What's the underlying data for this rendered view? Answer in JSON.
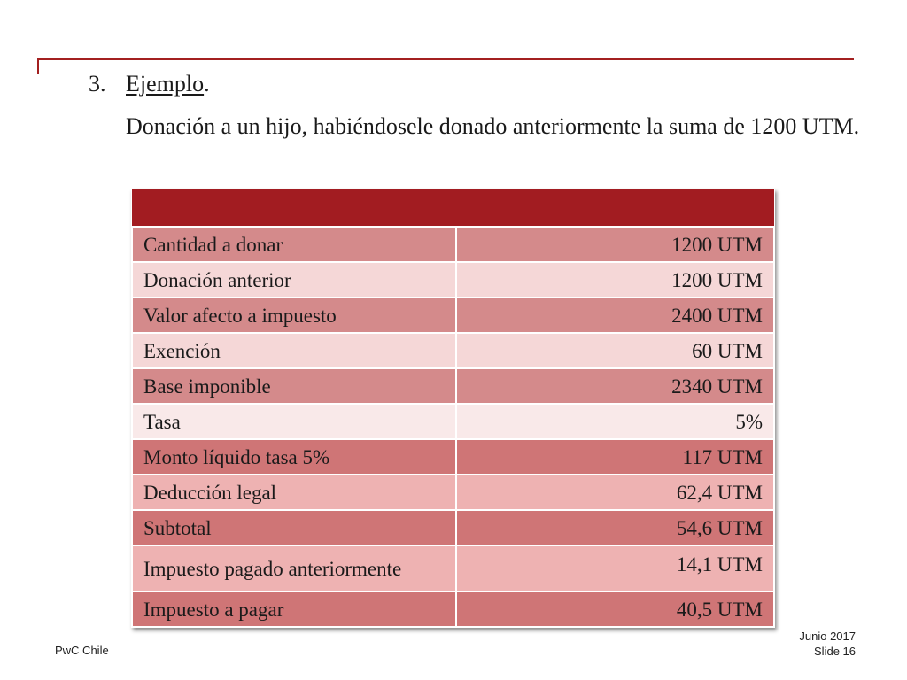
{
  "slide": {
    "number_prefix": "3.",
    "title": "Ejemplo",
    "title_suffix": ".",
    "subtitle": "Donación a un hijo, habiéndosele donado anteriormente la suma de 1200 UTM."
  },
  "table": {
    "rows": [
      {
        "label": "Cantidad a donar",
        "value": "1200 UTM"
      },
      {
        "label": "Donación anterior",
        "value": "1200 UTM"
      },
      {
        "label": "Valor afecto a impuesto",
        "value": "2400 UTM"
      },
      {
        "label": "Exención",
        "value": "60 UTM"
      },
      {
        "label": "Base imponible",
        "value": "2340 UTM"
      },
      {
        "label": "Tasa",
        "value": "5%"
      },
      {
        "label": "Monto líquido tasa 5%",
        "value": "117 UTM"
      },
      {
        "label": "Deducción legal",
        "value": "62,4 UTM"
      },
      {
        "label": "Subtotal",
        "value": "54,6 UTM"
      },
      {
        "label": "Impuesto pagado anteriormente",
        "value": "14,1 UTM"
      },
      {
        "label": "Impuesto a pagar",
        "value": "40,5 UTM"
      }
    ]
  },
  "footer": {
    "company": "PwC Chile",
    "date": "Junio 2017",
    "slide": "Slide 16"
  },
  "colors": {
    "accent": "#a21c21",
    "row_dark": "#d48a8b",
    "row_light": "#f5d7d7"
  }
}
